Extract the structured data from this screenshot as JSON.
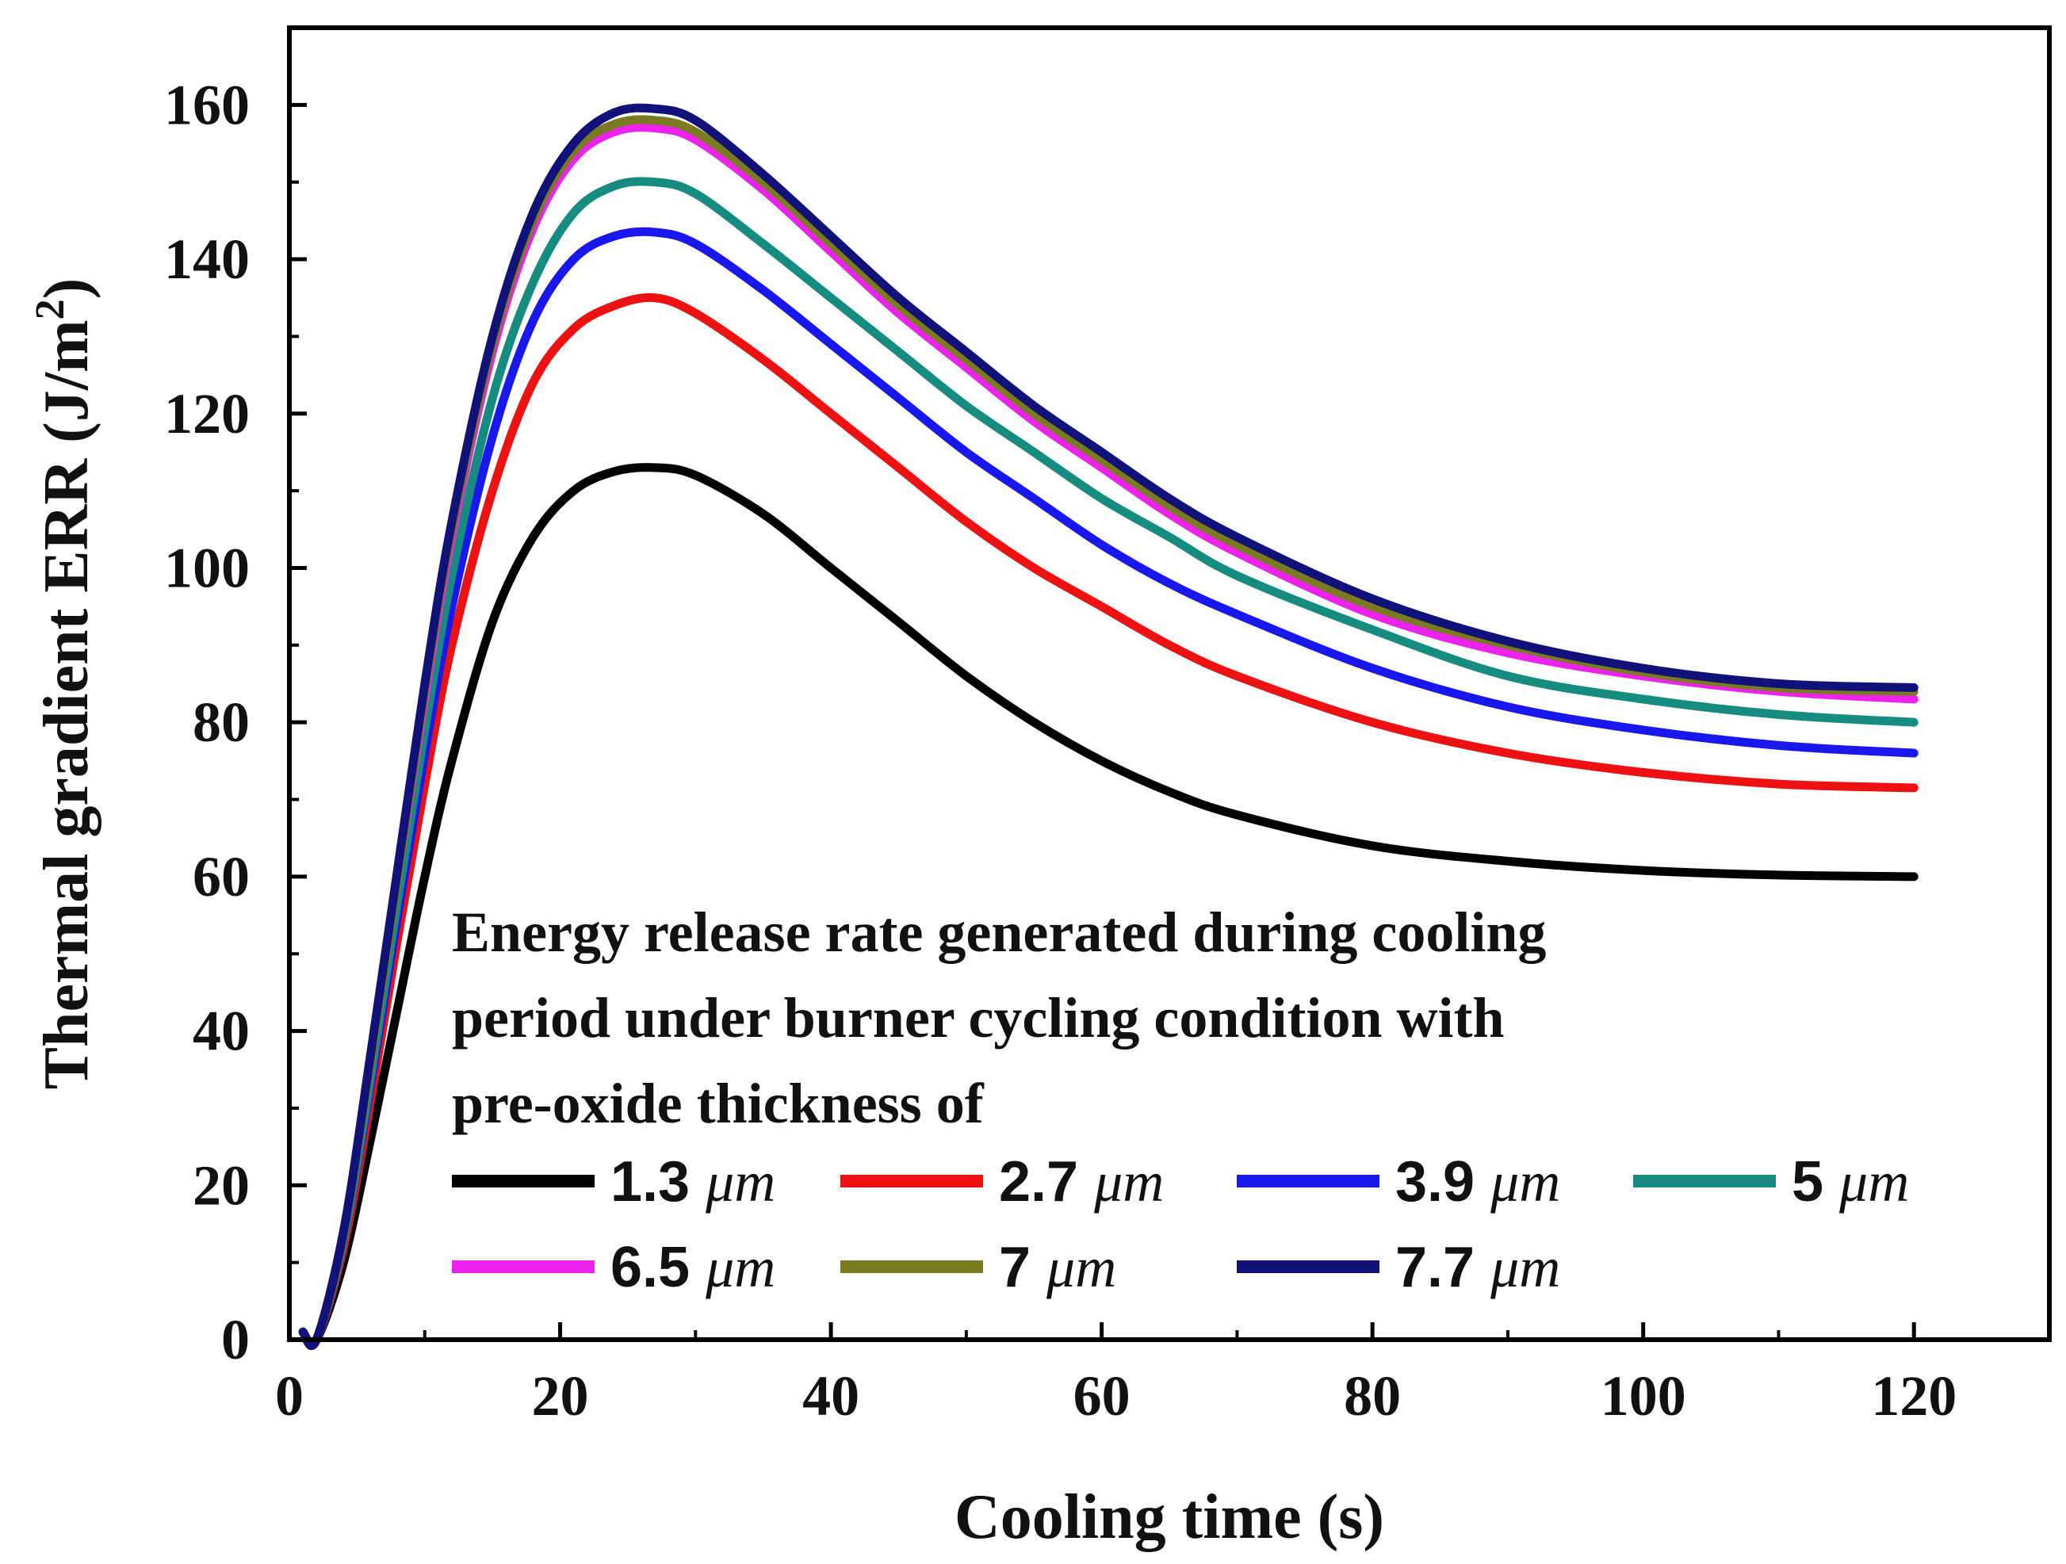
{
  "chart_data": {
    "type": "line",
    "title": "",
    "xlabel": "Cooling time (s)",
    "ylabel": "Thermal gradient ERR (J/m",
    "ylabel_superscript": "2",
    "ylabel_suffix": ")",
    "xlim": [
      0,
      130
    ],
    "ylim": [
      0,
      170
    ],
    "xticks": [
      0,
      20,
      40,
      60,
      80,
      100,
      120
    ],
    "yticks": [
      0,
      20,
      40,
      60,
      80,
      100,
      120,
      140,
      160
    ],
    "xtick_labels": [
      "0",
      "20",
      "40",
      "60",
      "80",
      "100",
      "120"
    ],
    "ytick_labels": [
      "0",
      "20",
      "40",
      "60",
      "80",
      "100",
      "120",
      "140",
      "160"
    ],
    "annotation_lines": [
      "Energy release rate generated during cooling",
      "period under burner cycling condition with",
      "pre-oxide thickness of"
    ],
    "legend_unit": "μm",
    "x": [
      1,
      2,
      4,
      6,
      8,
      10,
      12,
      15,
      18,
      21,
      24,
      27,
      30,
      35,
      40,
      45,
      50,
      55,
      60,
      65,
      70,
      80,
      90,
      100,
      110,
      120
    ],
    "series": [
      {
        "name": "1.3",
        "color": "#000000",
        "values": [
          1,
          0,
          10,
          26,
          43,
          60,
          75,
          93,
          104,
          110,
          112.5,
          113,
          112,
          107,
          100,
          93,
          86,
          80,
          75,
          71,
          68,
          64,
          62,
          60.8,
          60.2,
          60
        ]
      },
      {
        "name": "2.7",
        "color": "#ee1111",
        "values": [
          1,
          0,
          12,
          31,
          52,
          72,
          90,
          110,
          124,
          131,
          134,
          135,
          133,
          127,
          120,
          113,
          106,
          100,
          95,
          90,
          86,
          80,
          76,
          73.5,
          72,
          71.5
        ]
      },
      {
        "name": "3.9",
        "color": "#1818ee",
        "values": [
          1,
          0,
          13,
          33,
          55,
          76,
          95,
          117,
          132,
          140,
          143,
          143.5,
          142,
          136,
          129,
          122,
          115,
          109,
          103,
          98,
          94,
          87,
          82,
          79,
          77,
          76
        ]
      },
      {
        "name": "5",
        "color": "#168c80",
        "values": [
          1,
          0,
          13,
          34,
          57,
          79,
          99,
          122,
          137,
          146,
          149.5,
          150,
          148.5,
          142,
          135,
          128,
          121,
          115,
          109,
          104,
          99,
          92,
          86,
          83,
          81,
          80
        ]
      },
      {
        "name": "6.5",
        "color": "#ee22ee",
        "values": [
          1,
          0,
          14,
          36,
          60,
          83,
          104,
          128,
          144,
          153,
          156.5,
          157,
          155.5,
          149,
          141,
          133,
          126,
          119,
          113,
          107,
          102,
          94,
          89,
          86,
          84,
          83
        ]
      },
      {
        "name": "7",
        "color": "#7a7a22",
        "values": [
          1,
          0,
          14,
          36,
          60,
          84,
          105,
          129,
          145,
          154,
          157.5,
          158,
          156.5,
          150,
          142,
          134,
          127,
          120,
          114,
          108,
          103,
          95,
          90,
          86.5,
          84.5,
          84
        ]
      },
      {
        "name": "7.7",
        "color": "#11117a",
        "values": [
          1,
          0,
          14,
          37,
          61,
          85,
          106,
          130,
          146,
          155,
          159,
          159.5,
          158,
          151,
          143,
          135,
          128,
          121,
          115,
          109,
          104,
          96,
          90.5,
          87,
          85,
          84.5
        ]
      }
    ]
  }
}
